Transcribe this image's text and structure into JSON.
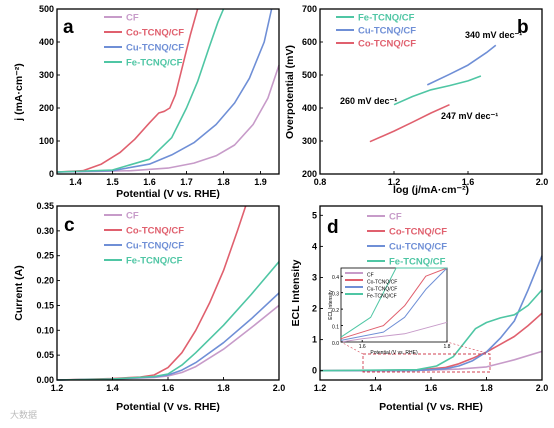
{
  "colors": {
    "CF": "#c79bc9",
    "Co": "#e0606e",
    "Cu": "#6f8fd6",
    "Fe": "#4fc6a4"
  },
  "watermark": "大数据",
  "chart_data": [
    {
      "panel": "a",
      "type": "line",
      "xlabel": "Potential (V vs. RHE)",
      "ylabel": "j (mA·cm⁻²)",
      "xlim": [
        1.35,
        1.95
      ],
      "ylim": [
        0,
        500
      ],
      "xticks": [
        "1.4",
        "1.5",
        "1.6",
        "1.7",
        "1.8",
        "1.9"
      ],
      "yticks": [
        "0",
        "100",
        "200",
        "300",
        "400",
        "500"
      ],
      "legend": [
        "CF",
        "Co-TCNQ/CF",
        "Cu-TCNQ/CF",
        "Fe-TCNQ/CF"
      ],
      "series": [
        {
          "name": "CF",
          "key": "CF",
          "x": [
            1.35,
            1.45,
            1.55,
            1.65,
            1.72,
            1.78,
            1.83,
            1.88,
            1.92,
            1.95
          ],
          "y": [
            6,
            8,
            10,
            18,
            33,
            55,
            88,
            150,
            230,
            330
          ]
        },
        {
          "name": "Co-TCNQ/CF",
          "key": "Co",
          "x": [
            1.35,
            1.42,
            1.47,
            1.52,
            1.56,
            1.6,
            1.625,
            1.64,
            1.655,
            1.67,
            1.69,
            1.71,
            1.73
          ],
          "y": [
            6,
            10,
            30,
            65,
            105,
            155,
            185,
            190,
            200,
            240,
            330,
            420,
            500
          ]
        },
        {
          "name": "Cu-TCNQ/CF",
          "key": "Cu",
          "x": [
            1.35,
            1.5,
            1.6,
            1.66,
            1.72,
            1.78,
            1.83,
            1.87,
            1.91,
            1.93
          ],
          "y": [
            6,
            10,
            30,
            58,
            95,
            150,
            215,
            290,
            400,
            500
          ]
        },
        {
          "name": "Fe-TCNQ/CF",
          "key": "Fe",
          "x": [
            1.35,
            1.5,
            1.6,
            1.66,
            1.7,
            1.73,
            1.76,
            1.785,
            1.8
          ],
          "y": [
            6,
            12,
            45,
            110,
            200,
            280,
            380,
            460,
            500
          ]
        }
      ]
    },
    {
      "panel": "b",
      "type": "line",
      "xlabel": "log (j/mA·cm⁻²)",
      "ylabel": "Overpotential (mV)",
      "xlim": [
        0.8,
        2.0
      ],
      "ylim": [
        200,
        700
      ],
      "xticks": [
        "0.8",
        "1.2",
        "1.6",
        "2.0"
      ],
      "yticks": [
        "200",
        "300",
        "400",
        "500",
        "600",
        "700"
      ],
      "legend": [
        "Fe-TCNQ/CF",
        "Cu-TCNQ/CF",
        "Co-TCNQ/CF"
      ],
      "annotations": [
        "340 mV dec⁻¹",
        "260 mV dec⁻¹",
        "247 mV dec⁻¹"
      ],
      "series": [
        {
          "name": "Fe-TCNQ/CF",
          "key": "Fe",
          "x": [
            1.2,
            1.3,
            1.4,
            1.5,
            1.6,
            1.67
          ],
          "y": [
            410,
            435,
            455,
            468,
            482,
            497
          ]
        },
        {
          "name": "Cu-TCNQ/CF",
          "key": "Cu",
          "x": [
            1.38,
            1.5,
            1.6,
            1.7,
            1.75
          ],
          "y": [
            470,
            502,
            530,
            568,
            590
          ]
        },
        {
          "name": "Co-TCNQ/CF",
          "key": "Co",
          "x": [
            1.07,
            1.2,
            1.3,
            1.4,
            1.5
          ],
          "y": [
            298,
            330,
            357,
            385,
            410
          ]
        }
      ]
    },
    {
      "panel": "c",
      "type": "line",
      "xlabel": "Potential (V vs. RHE)",
      "ylabel": "Current (A)",
      "xlim": [
        1.2,
        2.0
      ],
      "ylim": [
        0,
        0.35
      ],
      "xticks": [
        "1.2",
        "1.4",
        "1.6",
        "1.8",
        "2.0"
      ],
      "yticks": [
        "0.00",
        "0.05",
        "0.10",
        "0.15",
        "0.20",
        "0.25",
        "0.30",
        "0.35"
      ],
      "legend": [
        "CF",
        "Co-TCNQ/CF",
        "Cu-TCNQ/CF",
        "Fe-TCNQ/CF"
      ],
      "series": [
        {
          "name": "CF",
          "key": "CF",
          "x": [
            1.2,
            1.4,
            1.55,
            1.6,
            1.65,
            1.7,
            1.8,
            1.9,
            2.0
          ],
          "y": [
            0,
            0.002,
            0.005,
            0.008,
            0.015,
            0.027,
            0.062,
            0.105,
            0.15
          ]
        },
        {
          "name": "Co-TCNQ/CF",
          "key": "Co",
          "x": [
            1.2,
            1.4,
            1.5,
            1.55,
            1.6,
            1.65,
            1.7,
            1.75,
            1.8,
            1.85,
            1.88
          ],
          "y": [
            0,
            0.003,
            0.006,
            0.01,
            0.025,
            0.055,
            0.1,
            0.155,
            0.22,
            0.3,
            0.35
          ]
        },
        {
          "name": "Cu-TCNQ/CF",
          "key": "Cu",
          "x": [
            1.2,
            1.4,
            1.55,
            1.6,
            1.65,
            1.7,
            1.8,
            1.9,
            2.0
          ],
          "y": [
            0,
            0.002,
            0.006,
            0.01,
            0.02,
            0.035,
            0.075,
            0.123,
            0.175
          ]
        },
        {
          "name": "Fe-TCNQ/CF",
          "key": "Fe",
          "x": [
            1.2,
            1.4,
            1.55,
            1.6,
            1.65,
            1.7,
            1.8,
            1.9,
            2.0
          ],
          "y": [
            0,
            0.002,
            0.007,
            0.012,
            0.03,
            0.055,
            0.11,
            0.172,
            0.238
          ]
        }
      ]
    },
    {
      "panel": "d",
      "type": "line",
      "xlabel": "Potential (V vs. RHE)",
      "ylabel": "ECL Intensity",
      "xlim": [
        1.2,
        2.0
      ],
      "ylim": [
        -0.3,
        5.3
      ],
      "xticks": [
        "1.2",
        "1.4",
        "1.6",
        "1.8",
        "2.0"
      ],
      "yticks": [
        "0",
        "1",
        "2",
        "3",
        "4",
        "5"
      ],
      "legend": [
        "CF",
        "Co-TCNQ/CF",
        "Cu-TCNQ/CF",
        "Fe-TCNQ/CF"
      ],
      "inset": {
        "ylabel": "ECL Intensity",
        "xlabel": "Potential (V vs. RHE)",
        "xlim": [
          1.55,
          1.8
        ],
        "ylim": [
          0,
          0.45
        ],
        "xticks": [
          "1.6",
          "1.8"
        ],
        "yticks": [
          "0.0",
          "0.1",
          "0.2",
          "0.3",
          "0.4"
        ],
        "legend": [
          "CF",
          "Co-TCNQ/CF",
          "Cu-TCNQ/CF",
          "Fe-TCNQ/CF"
        ]
      },
      "series": [
        {
          "name": "CF",
          "key": "CF",
          "x": [
            1.2,
            1.5,
            1.6,
            1.7,
            1.8,
            1.9,
            2.0
          ],
          "y": [
            0,
            0,
            0.02,
            0.05,
            0.12,
            0.35,
            0.62
          ]
        },
        {
          "name": "Co-TCNQ/CF",
          "key": "Co",
          "x": [
            1.2,
            1.55,
            1.65,
            1.7,
            1.75,
            1.8,
            1.85,
            1.9,
            1.95,
            2.0
          ],
          "y": [
            0,
            0.02,
            0.1,
            0.22,
            0.4,
            0.6,
            0.85,
            1.1,
            1.45,
            1.85
          ]
        },
        {
          "name": "Cu-TCNQ/CF",
          "key": "Cu",
          "x": [
            1.2,
            1.55,
            1.65,
            1.7,
            1.75,
            1.8,
            1.85,
            1.9,
            1.95,
            2.0
          ],
          "y": [
            0,
            0.01,
            0.06,
            0.15,
            0.32,
            0.6,
            1.05,
            1.6,
            2.6,
            3.7
          ]
        },
        {
          "name": "Fe-TCNQ/CF",
          "key": "Fe",
          "x": [
            1.2,
            1.55,
            1.62,
            1.68,
            1.72,
            1.76,
            1.8,
            1.85,
            1.9,
            1.95,
            2.0
          ],
          "y": [
            0,
            0.03,
            0.15,
            0.45,
            0.9,
            1.35,
            1.55,
            1.7,
            1.8,
            2.1,
            2.6
          ]
        }
      ]
    }
  ]
}
